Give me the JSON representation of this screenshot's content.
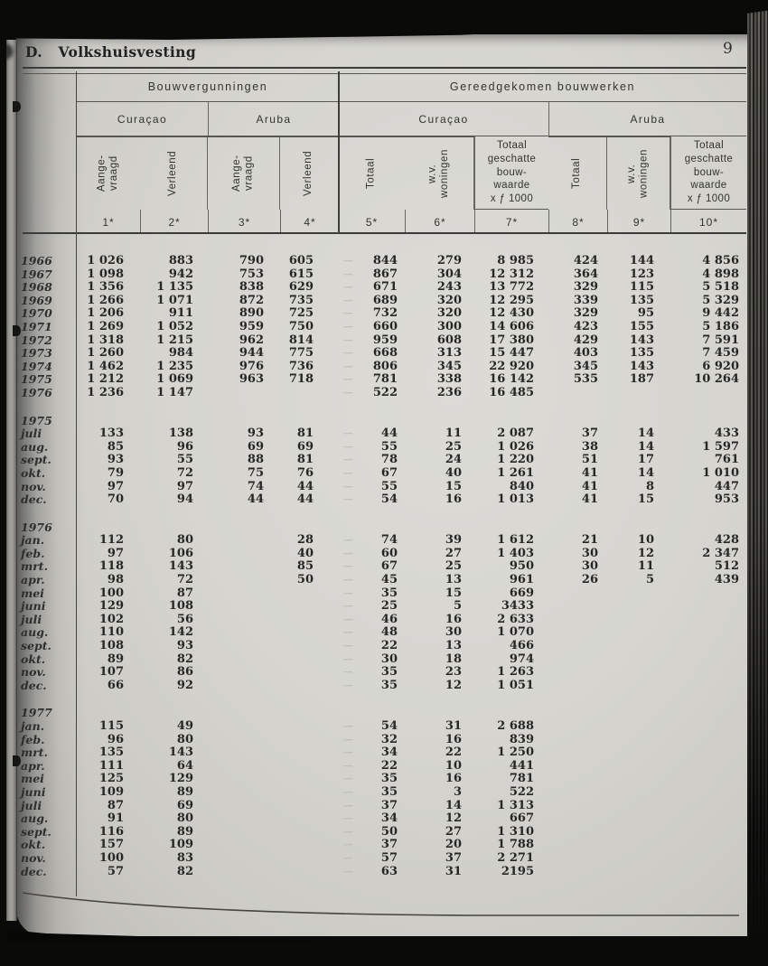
{
  "page": {
    "section_title": "D.   Volkshuisvesting",
    "page_number": "9",
    "paper_color": "#d6d5d0",
    "ink_color": "#262624",
    "currency_note": "x ƒ 1000"
  },
  "table": {
    "group_headers": [
      "Bouwvergunningen",
      "Gereedgekomen bouwwerken"
    ],
    "region_headers": [
      "Curaçao",
      "Aruba",
      "Curaçao",
      "Aruba"
    ],
    "rotated_labels": [
      "Aange-\nvraagd",
      "Verleend",
      "Aange-\nvraagd",
      "Verleend",
      "Totaal",
      "w.v.\nwoningen",
      "Totaal\ngeschatte\nbouw-\nwaarde\nx ƒ 1000",
      "Totaal",
      "w.v.\nwoningen",
      "Totaal\ngeschatte\nbouw-\nwaarde\nx ƒ 1000"
    ],
    "col_numbers": [
      "1*",
      "2*",
      "3*",
      "4*",
      "5*",
      "6*",
      "7*",
      "8*",
      "9*",
      "10*"
    ],
    "empty_cell_dash": "—",
    "sections": [
      {
        "section_label": "",
        "rows": [
          {
            "label": "1966",
            "v": [
              "1 026",
              "883",
              "790",
              "605",
              "844",
              "279",
              "8 985",
              "424",
              "144",
              "4 856"
            ]
          },
          {
            "label": "1967",
            "v": [
              "1 098",
              "942",
              "753",
              "615",
              "867",
              "304",
              "12 312",
              "364",
              "123",
              "4 898"
            ]
          },
          {
            "label": "1968",
            "v": [
              "1 356",
              "1 135",
              "838",
              "629",
              "671",
              "243",
              "13 772",
              "329",
              "115",
              "5 518"
            ]
          },
          {
            "label": "1969",
            "v": [
              "1 266",
              "1 071",
              "872",
              "735",
              "689",
              "320",
              "12 295",
              "339",
              "135",
              "5 329"
            ]
          },
          {
            "label": "1970",
            "v": [
              "1 206",
              "911",
              "890",
              "725",
              "732",
              "320",
              "12 430",
              "329",
              "95",
              "9 442"
            ]
          },
          {
            "label": "1971",
            "v": [
              "1 269",
              "1 052",
              "959",
              "750",
              "660",
              "300",
              "14 606",
              "423",
              "155",
              "5 186"
            ]
          },
          {
            "label": "1972",
            "v": [
              "1 318",
              "1 215",
              "962",
              "814",
              "959",
              "608",
              "17 380",
              "429",
              "143",
              "7 591"
            ]
          },
          {
            "label": "1973",
            "v": [
              "1 260",
              "984",
              "944",
              "775",
              "668",
              "313",
              "15 447",
              "403",
              "135",
              "7 459"
            ]
          },
          {
            "label": "1974",
            "v": [
              "1 462",
              "1 235",
              "976",
              "736",
              "806",
              "345",
              "22 920",
              "345",
              "143",
              "6 920"
            ]
          },
          {
            "label": "1975",
            "v": [
              "1 212",
              "1 069",
              "963",
              "718",
              "781",
              "338",
              "16 142",
              "535",
              "187",
              "10 264"
            ]
          },
          {
            "label": "1976",
            "v": [
              "1 236",
              "1 147",
              "",
              "",
              "522",
              "236",
              "16 485",
              "",
              "",
              ""
            ]
          }
        ]
      },
      {
        "section_label": "1975",
        "rows": [
          {
            "label": "juli",
            "v": [
              "133",
              "138",
              "93",
              "81",
              "44",
              "11",
              "2 087",
              "37",
              "14",
              "433"
            ]
          },
          {
            "label": "aug.",
            "v": [
              "85",
              "96",
              "69",
              "69",
              "55",
              "25",
              "1 026",
              "38",
              "14",
              "1 597"
            ]
          },
          {
            "label": "sept.",
            "v": [
              "93",
              "55",
              "88",
              "81",
              "78",
              "24",
              "1 220",
              "51",
              "17",
              "761"
            ]
          },
          {
            "label": "okt.",
            "v": [
              "79",
              "72",
              "75",
              "76",
              "67",
              "40",
              "1 261",
              "41",
              "14",
              "1 010"
            ]
          },
          {
            "label": "nov.",
            "v": [
              "97",
              "97",
              "74",
              "44",
              "55",
              "15",
              "840",
              "41",
              "8",
              "447"
            ]
          },
          {
            "label": "dec.",
            "v": [
              "70",
              "94",
              "44",
              "44",
              "54",
              "16",
              "1 013",
              "41",
              "15",
              "953"
            ]
          }
        ]
      },
      {
        "section_label": "1976",
        "rows": [
          {
            "label": "jan.",
            "v": [
              "112",
              "80",
              "",
              "28",
              "74",
              "39",
              "1 612",
              "21",
              "10",
              "428"
            ]
          },
          {
            "label": "feb.",
            "v": [
              "97",
              "106",
              "",
              "40",
              "60",
              "27",
              "1 403",
              "30",
              "12",
              "2 347"
            ]
          },
          {
            "label": "mrt.",
            "v": [
              "118",
              "143",
              "",
              "85",
              "67",
              "25",
              "950",
              "30",
              "11",
              "512"
            ]
          },
          {
            "label": "apr.",
            "v": [
              "98",
              "72",
              "",
              "50",
              "45",
              "13",
              "961",
              "26",
              "5",
              "439"
            ]
          },
          {
            "label": "mei",
            "v": [
              "100",
              "87",
              "",
              "",
              "35",
              "15",
              "669",
              "",
              "",
              ""
            ]
          },
          {
            "label": "juni",
            "v": [
              "129",
              "108",
              "",
              "",
              "25",
              "5",
              "3433",
              "",
              "",
              ""
            ]
          },
          {
            "label": "juli",
            "v": [
              "102",
              "56",
              "",
              "",
              "46",
              "16",
              "2 633",
              "",
              "",
              ""
            ]
          },
          {
            "label": "aug.",
            "v": [
              "110",
              "142",
              "",
              "",
              "48",
              "30",
              "1 070",
              "",
              "",
              ""
            ]
          },
          {
            "label": "sept.",
            "v": [
              "108",
              "93",
              "",
              "",
              "22",
              "13",
              "466",
              "",
              "",
              ""
            ]
          },
          {
            "label": "okt.",
            "v": [
              "89",
              "82",
              "",
              "",
              "30",
              "18",
              "974",
              "",
              "",
              ""
            ]
          },
          {
            "label": "nov.",
            "v": [
              "107",
              "86",
              "",
              "",
              "35",
              "23",
              "1 263",
              "",
              "",
              ""
            ]
          },
          {
            "label": "dec.",
            "v": [
              "66",
              "92",
              "",
              "",
              "35",
              "12",
              "1 051",
              "",
              "",
              ""
            ]
          }
        ]
      },
      {
        "section_label": "1977",
        "rows": [
          {
            "label": "jan.",
            "v": [
              "115",
              "49",
              "",
              "",
              "54",
              "31",
              "2 688",
              "",
              "",
              ""
            ]
          },
          {
            "label": "feb.",
            "v": [
              "96",
              "80",
              "",
              "",
              "32",
              "16",
              "839",
              "",
              "",
              ""
            ]
          },
          {
            "label": "mrt.",
            "v": [
              "135",
              "143",
              "",
              "",
              "34",
              "22",
              "1 250",
              "",
              "",
              ""
            ]
          },
          {
            "label": "apr.",
            "v": [
              "111",
              "64",
              "",
              "",
              "22",
              "10",
              "441",
              "",
              "",
              ""
            ]
          },
          {
            "label": "mei",
            "v": [
              "125",
              "129",
              "",
              "",
              "35",
              "16",
              "781",
              "",
              "",
              ""
            ]
          },
          {
            "label": "juni",
            "v": [
              "109",
              "89",
              "",
              "",
              "35",
              "3",
              "522",
              "",
              "",
              ""
            ]
          },
          {
            "label": "juli",
            "v": [
              "87",
              "69",
              "",
              "",
              "37",
              "14",
              "1 313",
              "",
              "",
              ""
            ]
          },
          {
            "label": "aug.",
            "v": [
              "91",
              "80",
              "",
              "",
              "34",
              "12",
              "667",
              "",
              "",
              ""
            ]
          },
          {
            "label": "sept.",
            "v": [
              "116",
              "89",
              "",
              "",
              "50",
              "27",
              "1 310",
              "",
              "",
              ""
            ]
          },
          {
            "label": "okt.",
            "v": [
              "157",
              "109",
              "",
              "",
              "37",
              "20",
              "1 788",
              "",
              "",
              ""
            ]
          },
          {
            "label": "nov.",
            "v": [
              "100",
              "83",
              "",
              "",
              "57",
              "37",
              "2 271",
              "",
              "",
              ""
            ]
          },
          {
            "label": "dec.",
            "v": [
              "57",
              "82",
              "",
              "",
              "63",
              "31",
              "2195",
              "",
              "",
              ""
            ]
          }
        ]
      }
    ]
  }
}
